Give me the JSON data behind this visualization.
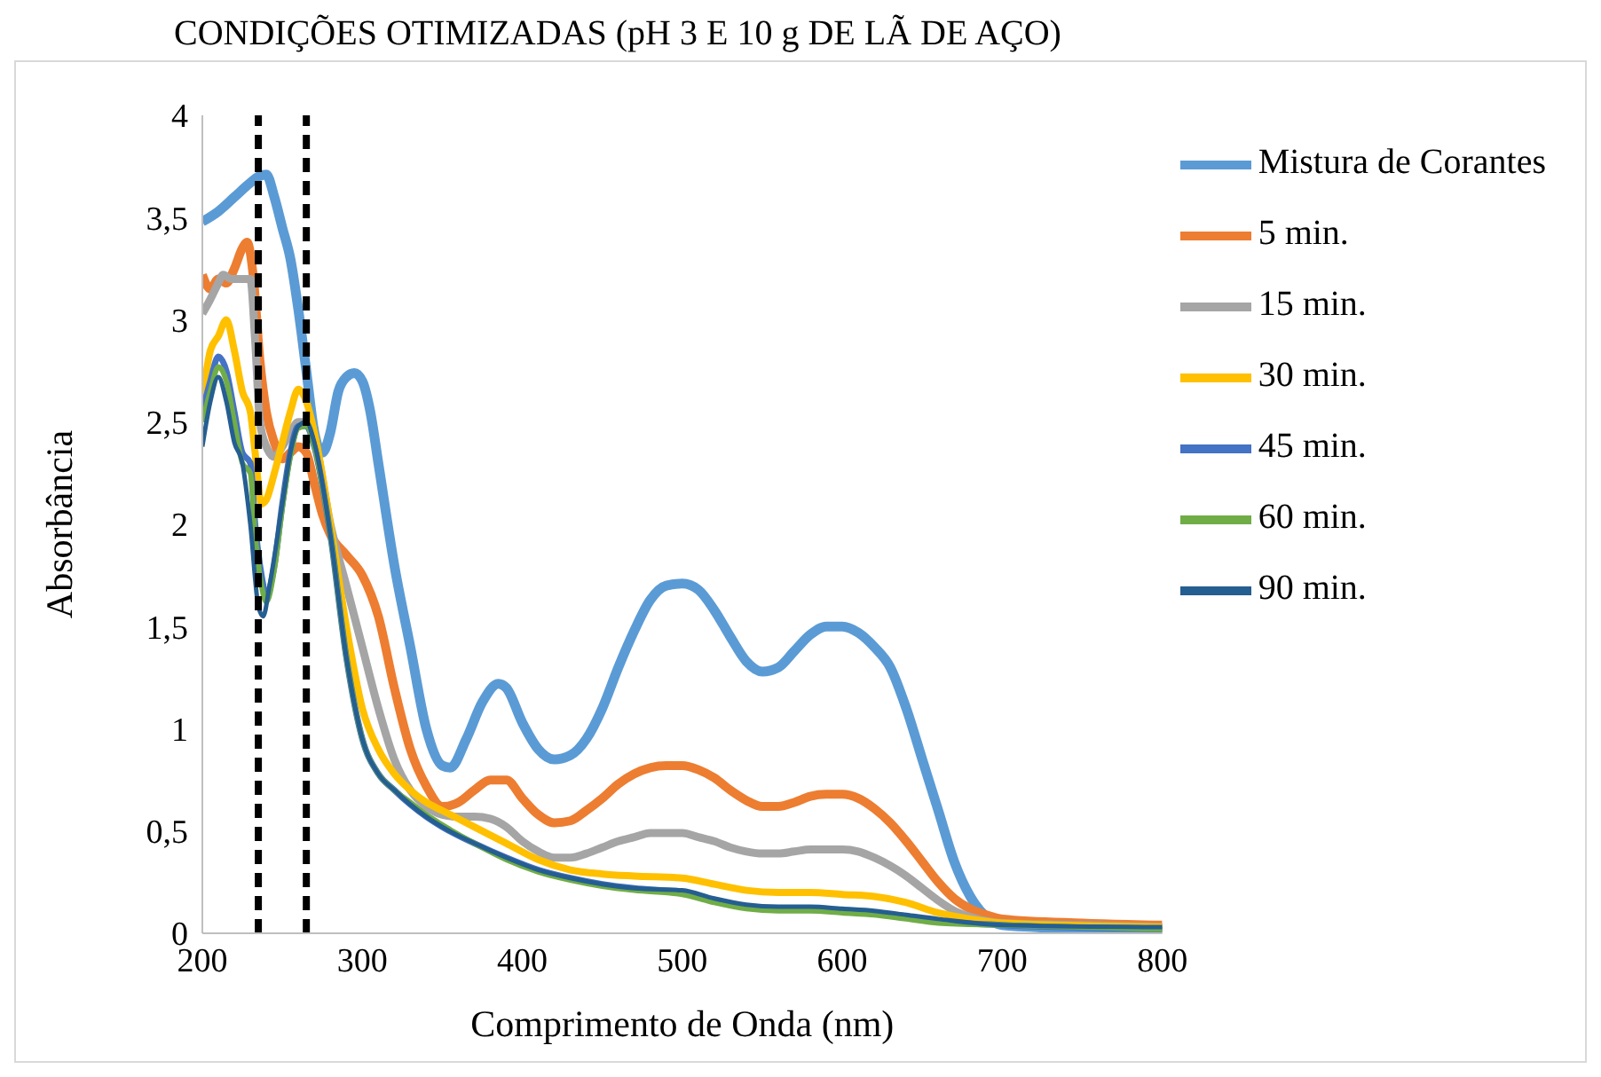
{
  "chart_data": {
    "type": "line",
    "title": "CONDIÇÕES OTIMIZADAS (pH 3 E 10 g DE LÃ DE AÇO)",
    "xlabel": "Comprimento de Onda (nm)",
    "ylabel": "Absorbância",
    "xlim": [
      200,
      800
    ],
    "xticks": [
      200,
      300,
      400,
      500,
      600,
      700,
      800
    ],
    "ylim": [
      0,
      4
    ],
    "yticks": [
      0,
      {
        "value": 0.5,
        "label": "0,5"
      },
      1,
      {
        "value": 1.5,
        "label": "1,5"
      },
      2,
      {
        "value": 2.5,
        "label": "2,5"
      },
      3,
      {
        "value": 3.5,
        "label": "3,5"
      },
      4
    ],
    "grid": false,
    "legend": "top right",
    "marker": "none",
    "line_style": "solid",
    "ref_lines": [
      {
        "axis": "x",
        "value": 235,
        "label": null,
        "color": "#000000",
        "line_style": "dashed"
      },
      {
        "axis": "x",
        "value": 265,
        "label": null,
        "color": "#000000",
        "line_style": "dashed"
      }
    ],
    "series": [
      {
        "name": "Mistura de Corantes",
        "color": "#5b9bd5",
        "x": [
          200,
          210,
          220,
          230,
          235,
          240,
          245,
          250,
          255,
          260,
          265,
          270,
          275,
          280,
          285,
          290,
          295,
          300,
          305,
          310,
          320,
          330,
          340,
          350,
          355,
          365,
          375,
          385,
          390,
          400,
          410,
          420,
          430,
          440,
          450,
          460,
          470,
          480,
          490,
          500,
          510,
          520,
          530,
          540,
          550,
          560,
          570,
          580,
          590,
          600,
          610,
          620,
          630,
          640,
          650,
          660,
          670,
          680,
          690,
          700,
          720,
          750,
          800
        ],
        "values": [
          3.48,
          3.53,
          3.6,
          3.67,
          3.7,
          3.71,
          3.6,
          3.45,
          3.3,
          3.05,
          2.75,
          2.45,
          2.35,
          2.45,
          2.65,
          2.72,
          2.74,
          2.7,
          2.55,
          2.3,
          1.8,
          1.4,
          1.0,
          0.82,
          0.81,
          0.95,
          1.13,
          1.22,
          1.2,
          1.03,
          0.9,
          0.85,
          0.87,
          0.95,
          1.1,
          1.3,
          1.48,
          1.63,
          1.7,
          1.71,
          1.68,
          1.58,
          1.45,
          1.33,
          1.28,
          1.3,
          1.38,
          1.46,
          1.5,
          1.5,
          1.47,
          1.4,
          1.3,
          1.1,
          0.85,
          0.6,
          0.35,
          0.18,
          0.08,
          0.04,
          0.03,
          0.02,
          0.02
        ]
      },
      {
        "name": "5 min.",
        "color": "#ed7d31",
        "x": [
          200,
          205,
          210,
          215,
          220,
          225,
          228,
          232,
          236,
          240,
          245,
          250,
          255,
          260,
          265,
          270,
          275,
          280,
          290,
          300,
          310,
          320,
          330,
          340,
          350,
          360,
          370,
          380,
          390,
          400,
          410,
          420,
          430,
          440,
          450,
          460,
          470,
          480,
          490,
          500,
          510,
          520,
          530,
          540,
          550,
          560,
          570,
          580,
          590,
          600,
          610,
          620,
          630,
          640,
          650,
          660,
          670,
          680,
          690,
          700,
          750,
          800
        ],
        "values": [
          3.22,
          3.15,
          3.2,
          3.18,
          3.25,
          3.35,
          3.38,
          3.2,
          2.8,
          2.55,
          2.4,
          2.32,
          2.35,
          2.38,
          2.35,
          2.2,
          2.05,
          1.95,
          1.85,
          1.75,
          1.55,
          1.2,
          0.9,
          0.72,
          0.62,
          0.64,
          0.7,
          0.75,
          0.75,
          0.66,
          0.58,
          0.54,
          0.55,
          0.6,
          0.66,
          0.73,
          0.78,
          0.81,
          0.82,
          0.82,
          0.8,
          0.76,
          0.7,
          0.65,
          0.62,
          0.62,
          0.64,
          0.67,
          0.68,
          0.68,
          0.66,
          0.61,
          0.54,
          0.45,
          0.35,
          0.25,
          0.17,
          0.12,
          0.09,
          0.07,
          0.05,
          0.04
        ]
      },
      {
        "name": "15 min.",
        "color": "#a5a5a5",
        "x": [
          200,
          205,
          210,
          213,
          218,
          225,
          230,
          233,
          236,
          240,
          245,
          250,
          255,
          260,
          265,
          270,
          280,
          290,
          300,
          310,
          320,
          330,
          340,
          350,
          360,
          370,
          380,
          390,
          400,
          410,
          420,
          430,
          440,
          450,
          460,
          470,
          480,
          490,
          500,
          510,
          520,
          530,
          540,
          550,
          560,
          570,
          580,
          590,
          600,
          610,
          620,
          630,
          640,
          650,
          660,
          670,
          680,
          700,
          750,
          800
        ],
        "values": [
          3.03,
          3.1,
          3.18,
          3.22,
          3.2,
          3.2,
          3.2,
          2.9,
          2.5,
          2.38,
          2.33,
          2.38,
          2.45,
          2.5,
          2.5,
          2.42,
          2.0,
          1.7,
          1.4,
          1.1,
          0.85,
          0.7,
          0.62,
          0.58,
          0.57,
          0.57,
          0.56,
          0.52,
          0.45,
          0.4,
          0.37,
          0.37,
          0.39,
          0.42,
          0.45,
          0.47,
          0.49,
          0.49,
          0.49,
          0.47,
          0.45,
          0.42,
          0.4,
          0.39,
          0.39,
          0.4,
          0.41,
          0.41,
          0.41,
          0.4,
          0.37,
          0.33,
          0.28,
          0.22,
          0.16,
          0.11,
          0.08,
          0.05,
          0.04,
          0.03
        ]
      },
      {
        "name": "30 min.",
        "color": "#ffc000",
        "x": [
          200,
          205,
          210,
          215,
          220,
          225,
          230,
          233,
          237,
          240,
          245,
          250,
          255,
          260,
          265,
          270,
          280,
          290,
          300,
          310,
          320,
          330,
          340,
          350,
          370,
          390,
          410,
          430,
          450,
          470,
          500,
          520,
          540,
          560,
          580,
          600,
          620,
          640,
          660,
          680,
          700,
          800
        ],
        "values": [
          2.6,
          2.85,
          2.92,
          3.0,
          2.85,
          2.65,
          2.55,
          2.35,
          2.1,
          2.12,
          2.25,
          2.4,
          2.55,
          2.66,
          2.6,
          2.45,
          2.0,
          1.5,
          1.1,
          0.9,
          0.78,
          0.7,
          0.64,
          0.6,
          0.52,
          0.44,
          0.36,
          0.31,
          0.29,
          0.28,
          0.27,
          0.24,
          0.21,
          0.2,
          0.2,
          0.19,
          0.18,
          0.15,
          0.1,
          0.07,
          0.05,
          0.03
        ]
      },
      {
        "name": "45 min.",
        "color": "#4472c4",
        "x": [
          200,
          205,
          210,
          215,
          220,
          225,
          230,
          233,
          237,
          240,
          245,
          250,
          255,
          260,
          265,
          270,
          280,
          290,
          300,
          310,
          320,
          330,
          340,
          350,
          370,
          390,
          410,
          430,
          450,
          470,
          500,
          520,
          540,
          560,
          580,
          600,
          620,
          640,
          660,
          700,
          800
        ],
        "values": [
          2.55,
          2.7,
          2.82,
          2.75,
          2.55,
          2.35,
          2.3,
          2.0,
          1.75,
          1.65,
          1.8,
          2.1,
          2.35,
          2.48,
          2.48,
          2.38,
          1.95,
          1.35,
          0.95,
          0.78,
          0.7,
          0.63,
          0.57,
          0.52,
          0.44,
          0.37,
          0.31,
          0.27,
          0.24,
          0.22,
          0.2,
          0.16,
          0.13,
          0.12,
          0.12,
          0.11,
          0.1,
          0.08,
          0.06,
          0.04,
          0.02
        ]
      },
      {
        "name": "60 min.",
        "color": "#70ad47",
        "x": [
          200,
          205,
          210,
          215,
          220,
          225,
          230,
          233,
          237,
          240,
          245,
          250,
          255,
          260,
          265,
          270,
          280,
          290,
          300,
          310,
          320,
          330,
          340,
          350,
          370,
          390,
          410,
          430,
          450,
          470,
          500,
          520,
          540,
          560,
          580,
          600,
          620,
          640,
          660,
          700,
          800
        ],
        "values": [
          2.5,
          2.65,
          2.77,
          2.7,
          2.5,
          2.3,
          2.25,
          1.95,
          1.7,
          1.62,
          1.78,
          2.08,
          2.33,
          2.47,
          2.48,
          2.38,
          1.95,
          1.35,
          0.95,
          0.78,
          0.7,
          0.64,
          0.58,
          0.53,
          0.44,
          0.36,
          0.3,
          0.26,
          0.23,
          0.21,
          0.19,
          0.15,
          0.12,
          0.11,
          0.11,
          0.1,
          0.09,
          0.07,
          0.05,
          0.04,
          0.02
        ]
      },
      {
        "name": "90 min.",
        "color": "#255e91",
        "x": [
          200,
          205,
          210,
          215,
          220,
          225,
          230,
          235,
          238,
          242,
          250,
          255,
          260,
          265,
          270,
          280,
          290,
          300,
          310,
          320,
          330,
          340,
          350,
          370,
          390,
          410,
          430,
          450,
          470,
          500,
          520,
          540,
          560,
          580,
          600,
          620,
          640,
          660,
          700,
          800
        ],
        "values": [
          2.38,
          2.6,
          2.72,
          2.6,
          2.4,
          2.3,
          2.0,
          1.6,
          1.55,
          1.7,
          2.1,
          2.35,
          2.48,
          2.5,
          2.4,
          1.95,
          1.35,
          0.95,
          0.78,
          0.7,
          0.63,
          0.57,
          0.52,
          0.44,
          0.37,
          0.31,
          0.27,
          0.24,
          0.22,
          0.21,
          0.17,
          0.14,
          0.13,
          0.13,
          0.12,
          0.11,
          0.09,
          0.07,
          0.04,
          0.03
        ]
      }
    ]
  }
}
